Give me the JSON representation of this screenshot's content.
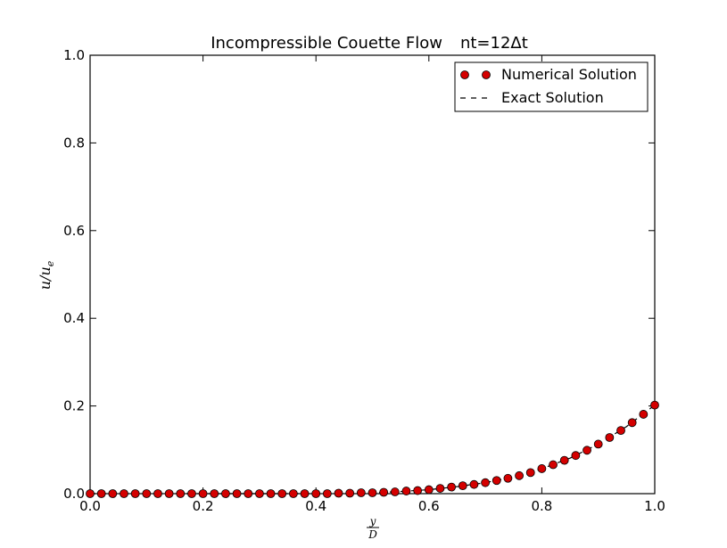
{
  "chart_data": {
    "type": "scatter",
    "title": "Incompressible Couette Flow",
    "title_suffix": "nt=12Δt",
    "xlabel_num": "y",
    "xlabel_den": "D",
    "ylabel": "u/u",
    "ylabel_sub": "e",
    "xlim": [
      0.0,
      1.0
    ],
    "ylim": [
      0.0,
      1.0
    ],
    "xticks": [
      "0.0",
      "0.2",
      "0.4",
      "0.6",
      "0.8",
      "1.0"
    ],
    "yticks": [
      "0.0",
      "0.2",
      "0.4",
      "0.6",
      "0.8",
      "1.0"
    ],
    "grid": false,
    "legend_position": "top-right",
    "series": [
      {
        "name": "Numerical Solution",
        "style": "markers",
        "color": "#d40000",
        "x": [
          0.0,
          0.02,
          0.04,
          0.06,
          0.08,
          0.1,
          0.12,
          0.14,
          0.16,
          0.18,
          0.2,
          0.22,
          0.24,
          0.26,
          0.28,
          0.3,
          0.32,
          0.34,
          0.36,
          0.38,
          0.4,
          0.42,
          0.44,
          0.46,
          0.48,
          0.5,
          0.52,
          0.54,
          0.56,
          0.58,
          0.6,
          0.62,
          0.64,
          0.66,
          0.68,
          0.7,
          0.72,
          0.74,
          0.76,
          0.78,
          0.8,
          0.82,
          0.84,
          0.86,
          0.88,
          0.9,
          0.92,
          0.94,
          0.96,
          0.98,
          1.0
        ],
        "y": [
          0.0,
          0.0,
          0.0,
          0.0,
          0.0,
          0.0,
          0.0,
          0.0,
          0.0,
          0.0,
          0.0,
          0.0,
          0.0,
          0.0,
          0.0,
          0.0,
          0.0,
          0.0,
          0.0,
          0.0,
          0.0,
          0.0,
          0.001,
          0.001,
          0.002,
          0.002,
          0.003,
          0.004,
          0.006,
          0.007,
          0.009,
          0.012,
          0.015,
          0.018,
          0.021,
          0.025,
          0.03,
          0.035,
          0.041,
          0.048,
          0.057,
          0.066,
          0.076,
          0.087,
          0.099,
          0.113,
          0.128,
          0.144,
          0.162,
          0.181,
          0.202
        ]
      },
      {
        "name": "Exact Solution",
        "style": "dashed",
        "color": "#000000",
        "x": [
          0.0,
          0.2,
          0.4,
          0.5,
          0.55,
          0.6,
          0.65,
          0.7,
          0.75,
          0.8,
          0.85,
          0.9,
          0.95,
          1.0
        ],
        "y": [
          0.0,
          0.0,
          0.0,
          0.002,
          0.005,
          0.009,
          0.016,
          0.025,
          0.038,
          0.057,
          0.081,
          0.113,
          0.153,
          0.202
        ]
      }
    ]
  }
}
